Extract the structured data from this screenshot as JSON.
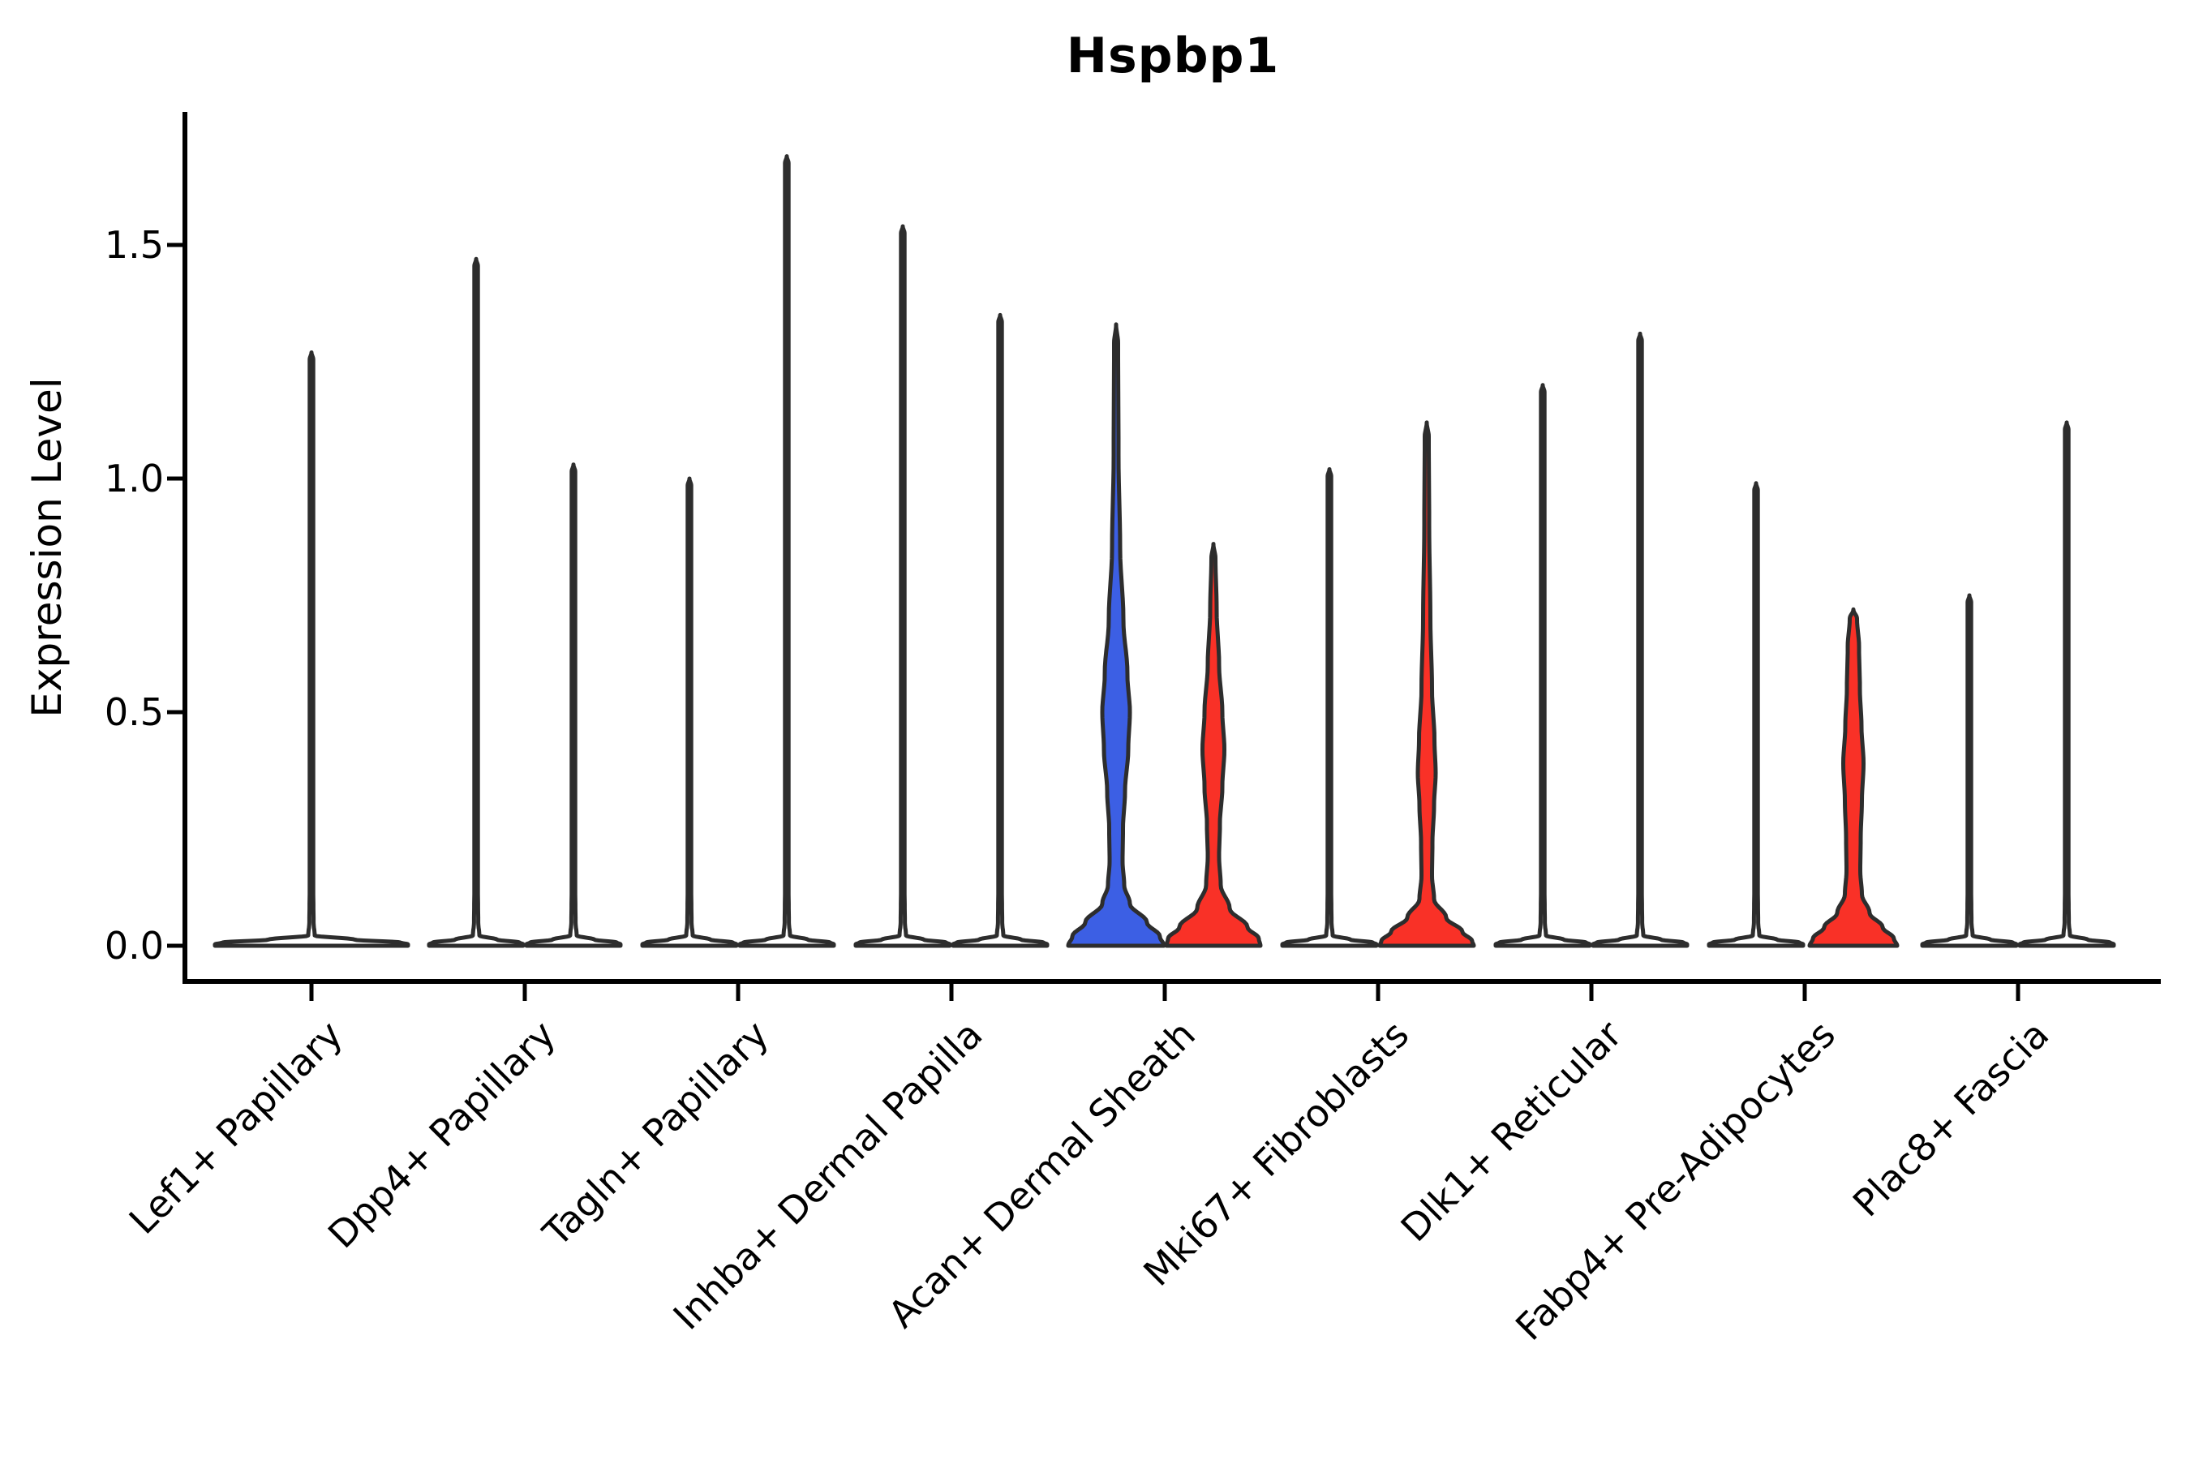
{
  "figure": {
    "title": "Hspbp1",
    "ylabel": "Expression Level"
  },
  "colors": {
    "group_a_fill": "#3C5FE4",
    "group_b_fill": "#F93127",
    "violin_outline": "#2D2D2D",
    "axis": "#000000",
    "background": "#FFFFFF"
  },
  "chart_data": {
    "type": "violin",
    "title": "Hspbp1",
    "xlabel": "",
    "ylabel": "Expression Level",
    "yticks": [
      0.0,
      0.5,
      1.0,
      1.5
    ],
    "yticklabels": [
      "0.0",
      "0.5",
      "1.0",
      "1.5"
    ],
    "ylim": [
      -0.08,
      1.78
    ],
    "grid": false,
    "legend": "none",
    "categories": [
      {
        "label": "Lef1+ Papillary",
        "violins": [
          {
            "group": "A",
            "pos": "full",
            "style": "thin",
            "max": 1.27
          }
        ]
      },
      {
        "label": "Dpp4+ Papillary",
        "violins": [
          {
            "group": "A",
            "pos": "left",
            "style": "thin",
            "max": 1.47
          },
          {
            "group": "B",
            "pos": "right",
            "style": "thin",
            "max": 1.03
          }
        ]
      },
      {
        "label": "Tagln+ Papillary",
        "violins": [
          {
            "group": "A",
            "pos": "left",
            "style": "thin",
            "max": 1.0
          },
          {
            "group": "B",
            "pos": "right",
            "style": "thin",
            "max": 1.69
          }
        ]
      },
      {
        "label": "Inhba+ Dermal Papilla",
        "violins": [
          {
            "group": "A",
            "pos": "left",
            "style": "thin",
            "max": 1.54
          },
          {
            "group": "B",
            "pos": "right",
            "style": "thin",
            "max": 1.35
          }
        ]
      },
      {
        "label": "Acan+ Dermal Sheath",
        "violins": [
          {
            "group": "A",
            "pos": "left",
            "style": "shaped",
            "max": 1.33,
            "profile": [
              [
                1.33,
                0
              ],
              [
                1.29,
                2.5
              ],
              [
                1.05,
                3
              ],
              [
                0.85,
                5
              ],
              [
                0.7,
                9
              ],
              [
                0.58,
                14
              ],
              [
                0.5,
                17
              ],
              [
                0.42,
                15
              ],
              [
                0.33,
                11
              ],
              [
                0.25,
                8.5
              ],
              [
                0.18,
                8
              ],
              [
                0.13,
                10
              ],
              [
                0.09,
                17
              ],
              [
                0.05,
                38
              ],
              [
                0.02,
                54
              ],
              [
                0,
                59
              ]
            ]
          },
          {
            "group": "B",
            "pos": "right",
            "style": "shaped",
            "max": 0.86,
            "profile": [
              [
                0.86,
                0
              ],
              [
                0.83,
                2.5
              ],
              [
                0.72,
                4
              ],
              [
                0.6,
                7
              ],
              [
                0.5,
                11
              ],
              [
                0.42,
                13.5
              ],
              [
                0.34,
                11
              ],
              [
                0.26,
                8
              ],
              [
                0.19,
                7
              ],
              [
                0.13,
                9
              ],
              [
                0.08,
                20
              ],
              [
                0.04,
                42
              ],
              [
                0.015,
                56
              ],
              [
                0,
                58
              ]
            ]
          }
        ]
      },
      {
        "label": "Mki67+ Fibroblasts",
        "violins": [
          {
            "group": "A",
            "pos": "left",
            "style": "thin",
            "max": 1.02
          },
          {
            "group": "B",
            "pos": "right",
            "style": "shaped",
            "max": 1.12,
            "profile": [
              [
                1.12,
                0
              ],
              [
                1.09,
                2.5
              ],
              [
                0.9,
                3
              ],
              [
                0.7,
                4.5
              ],
              [
                0.55,
                6.5
              ],
              [
                0.44,
                9.5
              ],
              [
                0.37,
                11
              ],
              [
                0.3,
                9
              ],
              [
                0.22,
                7
              ],
              [
                0.15,
                6.5
              ],
              [
                0.1,
                9
              ],
              [
                0.06,
                24
              ],
              [
                0.03,
                44
              ],
              [
                0.01,
                56
              ],
              [
                0,
                58
              ]
            ]
          }
        ]
      },
      {
        "label": "Dlk1+ Reticular",
        "violins": [
          {
            "group": "A",
            "pos": "left",
            "style": "thin",
            "max": 1.2
          },
          {
            "group": "B",
            "pos": "right",
            "style": "thin",
            "max": 1.31
          }
        ]
      },
      {
        "label": "Fabp4+ Pre-Adipocytes",
        "violins": [
          {
            "group": "A",
            "pos": "left",
            "style": "thin",
            "max": 0.99
          },
          {
            "group": "B",
            "pos": "right",
            "style": "shaped",
            "max": 0.72,
            "profile": [
              [
                0.72,
                0
              ],
              [
                0.7,
                4.5
              ],
              [
                0.64,
                7
              ],
              [
                0.55,
                8
              ],
              [
                0.47,
                10
              ],
              [
                0.39,
                12.5
              ],
              [
                0.31,
                10.5
              ],
              [
                0.23,
                9
              ],
              [
                0.16,
                8.5
              ],
              [
                0.11,
                10.5
              ],
              [
                0.07,
                20
              ],
              [
                0.04,
                36
              ],
              [
                0.015,
                50
              ],
              [
                0,
                54
              ]
            ]
          }
        ]
      },
      {
        "label": "Plac8+ Fascia",
        "violins": [
          {
            "group": "A",
            "pos": "left",
            "style": "thin",
            "max": 0.75
          },
          {
            "group": "B",
            "pos": "right",
            "style": "thin",
            "max": 1.12
          }
        ]
      }
    ]
  }
}
